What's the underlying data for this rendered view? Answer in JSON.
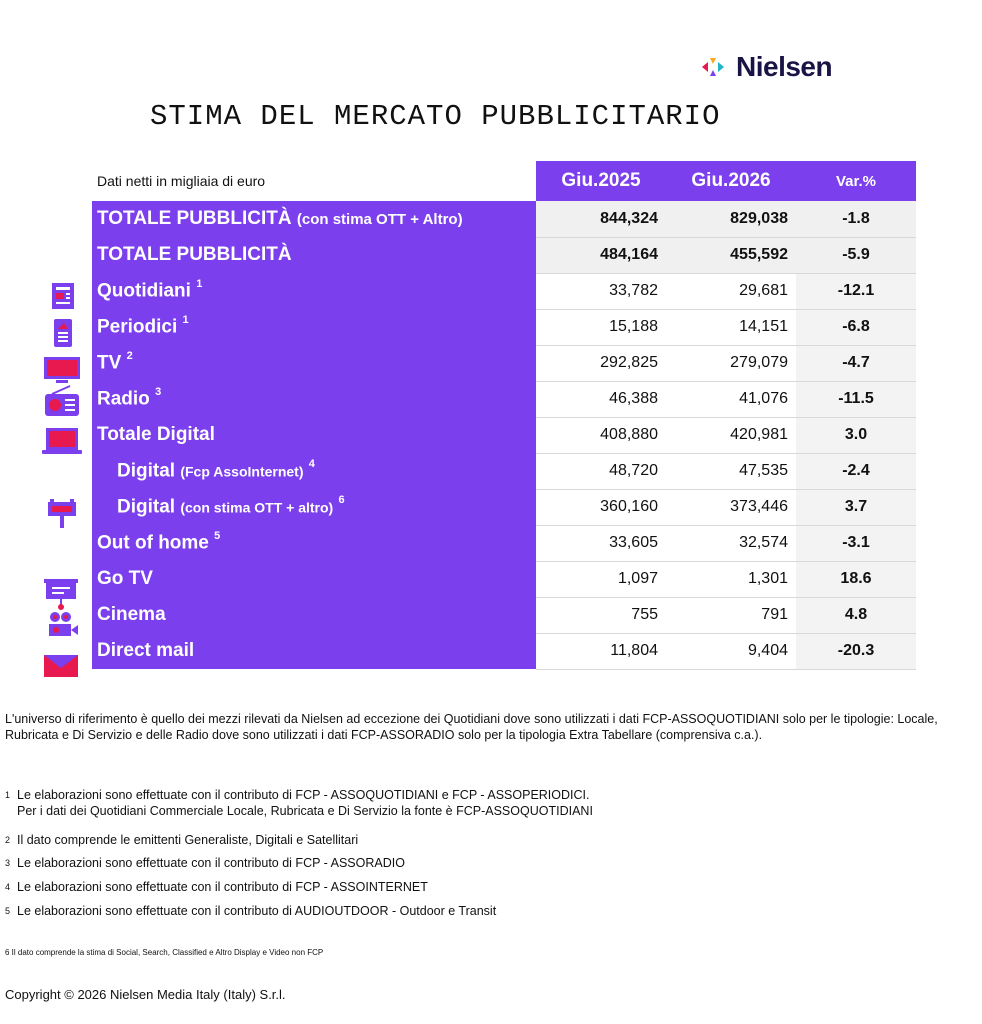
{
  "brand": {
    "name": "Nielsen"
  },
  "title": "STIMA DEL MERCATO PUBBLICITARIO",
  "table": {
    "unit_label": "Dati netti in migliaia di euro",
    "col_2025": "Giu.2025",
    "col_2026": "Giu.2026",
    "col_var": "Var.%",
    "rows": [
      {
        "label": "TOTALE PUBBLICITÀ",
        "qual": "(con stima OTT + Altro)",
        "sup": "",
        "v2025": "844,324",
        "v2026": "829,038",
        "var": "-1.8"
      },
      {
        "label": "TOTALE PUBBLICITÀ",
        "qual": "",
        "sup": "",
        "v2025": "484,164",
        "v2026": "455,592",
        "var": "-5.9"
      },
      {
        "label": "Quotidiani",
        "qual": "",
        "sup": "1",
        "v2025": "33,782",
        "v2026": "29,681",
        "var": "-12.1"
      },
      {
        "label": "Periodici",
        "qual": "",
        "sup": "1",
        "v2025": "15,188",
        "v2026": "14,151",
        "var": "-6.8"
      },
      {
        "label": "TV",
        "qual": "",
        "sup": "2",
        "v2025": "292,825",
        "v2026": "279,079",
        "var": "-4.7"
      },
      {
        "label": "Radio",
        "qual": "",
        "sup": "3",
        "v2025": "46,388",
        "v2026": "41,076",
        "var": "-11.5"
      },
      {
        "label": "Totale Digital",
        "qual": "",
        "sup": "",
        "v2025": "408,880",
        "v2026": "420,981",
        "var": "3.0"
      },
      {
        "label": "Digital",
        "qual": "(Fcp AssoInternet)",
        "sup": "4",
        "v2025": "48,720",
        "v2026": "47,535",
        "var": "-2.4"
      },
      {
        "label": "Digital",
        "qual": "(con stima OTT + altro)",
        "sup": "6",
        "v2025": "360,160",
        "v2026": "373,446",
        "var": "3.7"
      },
      {
        "label": "Out of home",
        "qual": "",
        "sup": "5",
        "v2025": "33,605",
        "v2026": "32,574",
        "var": "-3.1"
      },
      {
        "label": "Go TV",
        "qual": "",
        "sup": "",
        "v2025": "1,097",
        "v2026": "1,301",
        "var": "18.6"
      },
      {
        "label": "Cinema",
        "qual": "",
        "sup": "",
        "v2025": "755",
        "v2026": "791",
        "var": "4.8"
      },
      {
        "label": "Direct mail",
        "qual": "",
        "sup": "",
        "v2025": "11,804",
        "v2026": "9,404",
        "var": "-20.3"
      }
    ]
  },
  "icons": [
    "newspaper-icon",
    "magazine-icon",
    "tv-icon",
    "radio-icon",
    "laptop-icon",
    "billboard-icon",
    "presentation-screen-icon",
    "film-camera-icon",
    "envelope-icon"
  ],
  "colors": {
    "accent": "#7b3fed",
    "icon": "#7b3fed",
    "icon_accent": "#e8194f",
    "brand_text": "#1a1446"
  },
  "notes": {
    "universe": "L'universo di riferimento è quello dei mezzi rilevati da Nielsen ad eccezione dei Quotidiani dove sono utilizzati i dati FCP-ASSOQUOTIDIANI solo per le tipologie: Locale, Rubricata e Di Servizio e delle Radio dove sono utilizzati i dati FCP-ASSORADIO solo per la tipologia Extra Tabellare (comprensiva c.a.).",
    "fn1_mark": "1",
    "fn1_line1": "Le elaborazioni sono effettuate con il contributo di FCP - ASSOQUOTIDIANI e FCP - ASSOPERIODICI.",
    "fn1_line2": "Per i dati dei Quotidiani Commerciale Locale, Rubricata e Di Servizio la fonte è  FCP-ASSOQUOTIDIANI",
    "fn2_mark": "2",
    "fn2": "Il dato comprende le emittenti Generaliste, Digitali e Satellitari",
    "fn3_mark": "3",
    "fn3": "Le elaborazioni sono effettuate con il contributo di FCP - ASSORADIO",
    "fn4_mark": "4",
    "fn4": "Le elaborazioni sono effettuate con il contributo di FCP - ASSOINTERNET",
    "fn5_mark": "5",
    "fn5": "Le elaborazioni sono effettuate con il contributo di AUDIOUTDOOR - Outdoor e Transit",
    "fn6": "6   Il dato comprende la stima di Social, Search, Classified e Altro Display e Video non FCP"
  },
  "copyright": "Copyright © 2026 Nielsen Media Italy (Italy) S.r.l."
}
